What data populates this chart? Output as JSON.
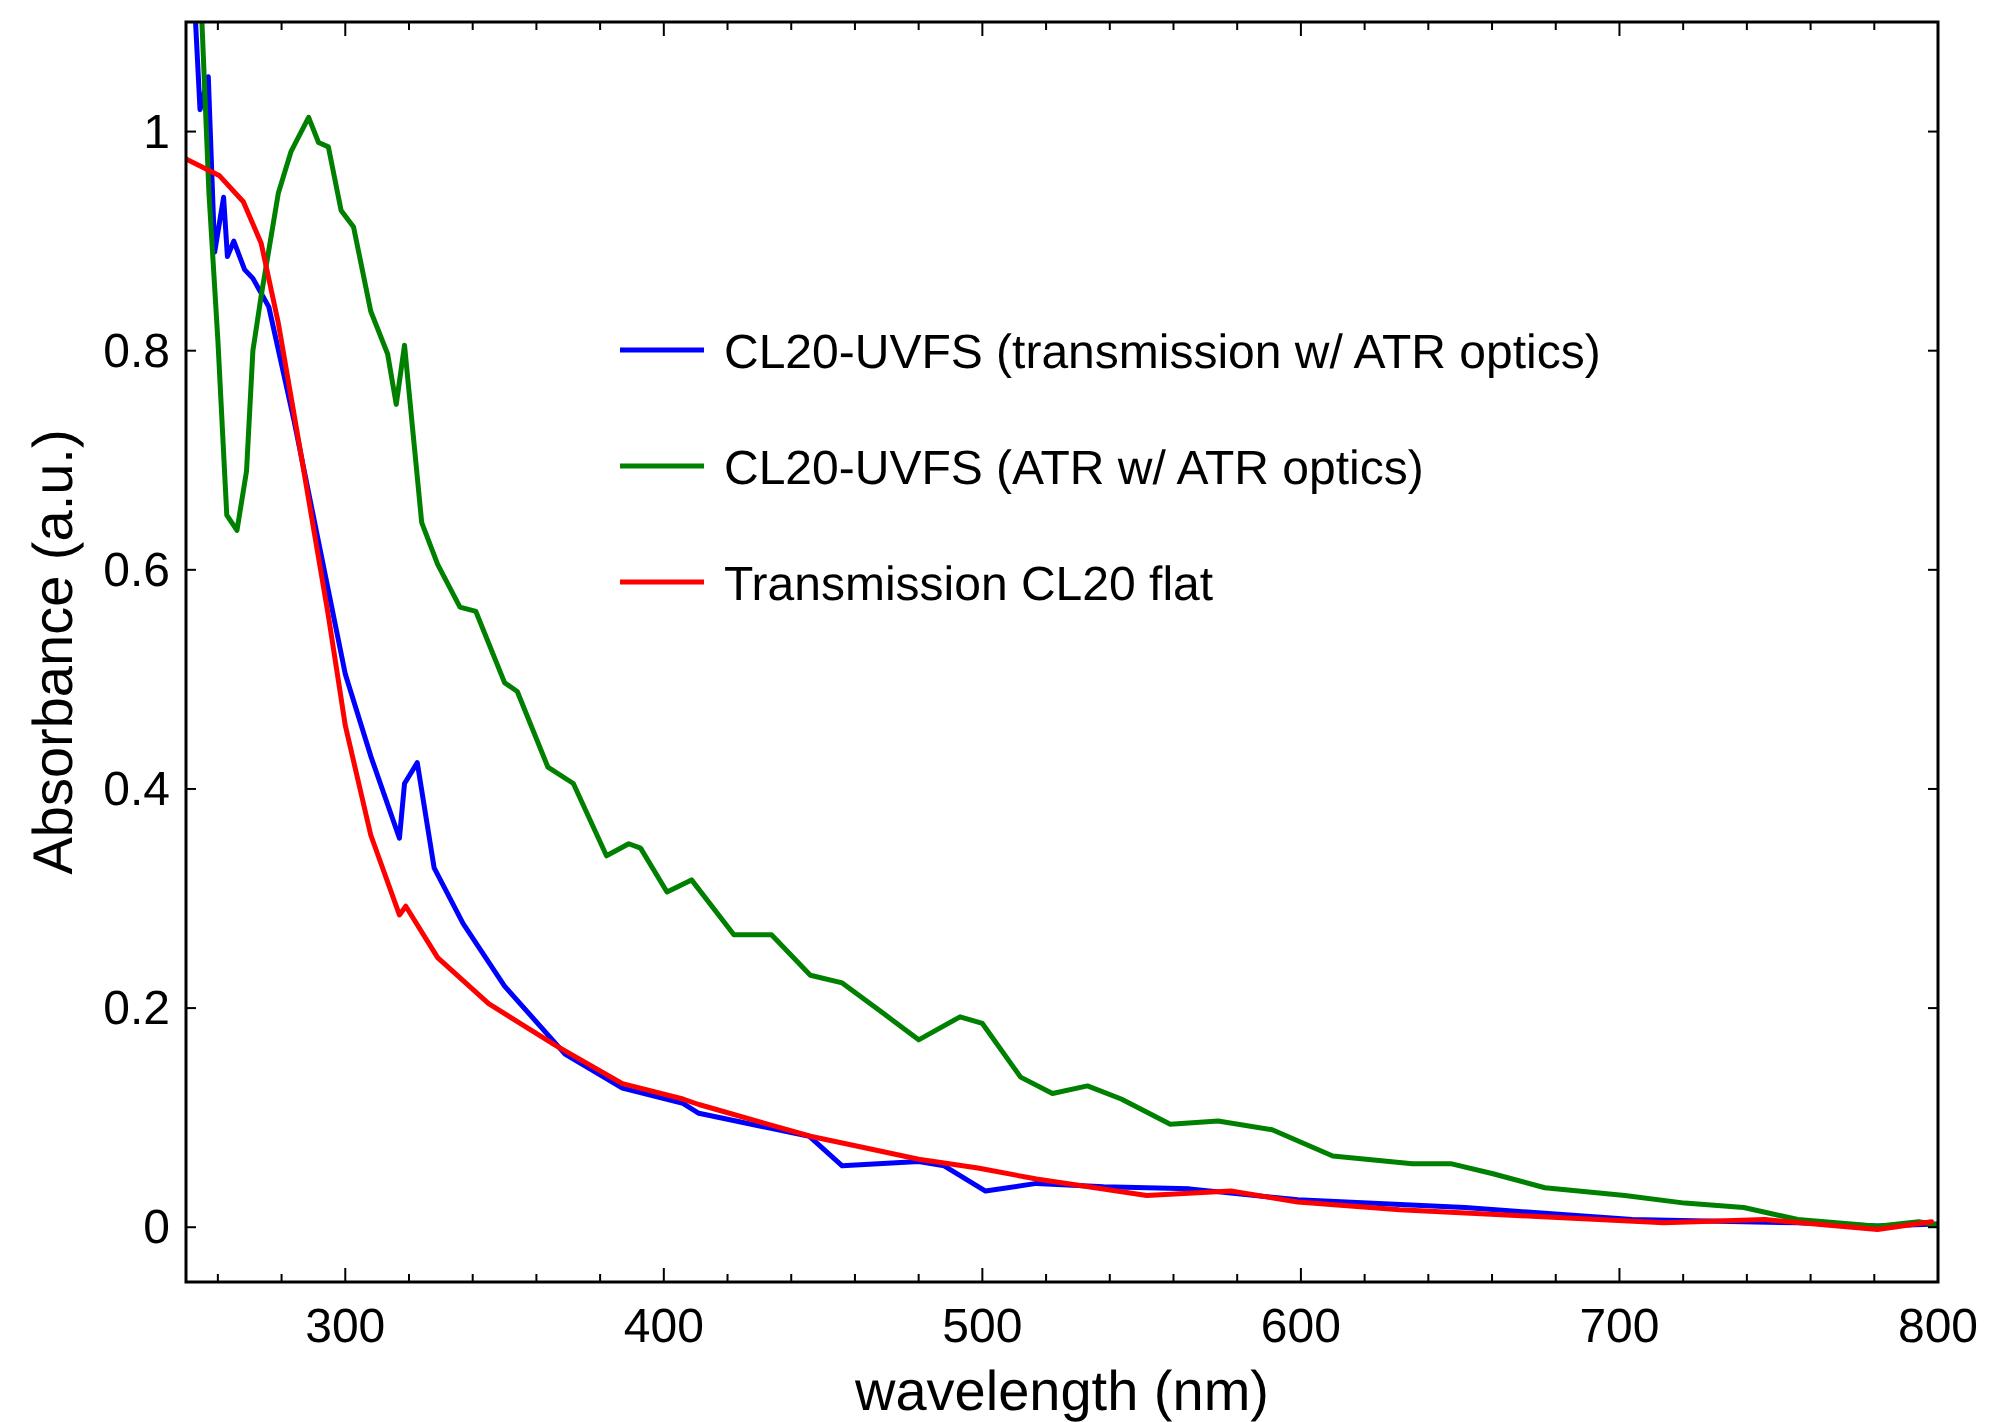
{
  "chart_data": {
    "type": "line",
    "xlabel": "wavelength (nm)",
    "ylabel": "Absorbance (a.u.)",
    "xlim": [
      250,
      800
    ],
    "ylim": [
      -0.05,
      1.1
    ],
    "xticks": [
      {
        "value": 260,
        "label": null
      },
      {
        "value": 280,
        "label": null
      },
      300,
      {
        "value": 320,
        "label": null
      },
      {
        "value": 340,
        "label": null
      },
      {
        "value": 360,
        "label": null
      },
      {
        "value": 380,
        "label": null
      },
      400,
      {
        "value": 420,
        "label": null
      },
      {
        "value": 440,
        "label": null
      },
      {
        "value": 460,
        "label": null
      },
      {
        "value": 480,
        "label": null
      },
      500,
      {
        "value": 520,
        "label": null
      },
      {
        "value": 540,
        "label": null
      },
      {
        "value": 560,
        "label": null
      },
      {
        "value": 580,
        "label": null
      },
      600,
      {
        "value": 620,
        "label": null
      },
      {
        "value": 640,
        "label": null
      },
      {
        "value": 660,
        "label": null
      },
      {
        "value": 680,
        "label": null
      },
      700,
      {
        "value": 720,
        "label": null
      },
      {
        "value": 740,
        "label": null
      },
      {
        "value": 760,
        "label": null
      },
      {
        "value": 780,
        "label": null
      },
      800
    ],
    "yticks": [
      0,
      0.2,
      0.4,
      0.6,
      0.8,
      1
    ],
    "grid": false,
    "legend": "top right",
    "marker": "none",
    "line_style": "solid",
    "series": [
      {
        "name": "CL20-UVFS (transmission w/ ATR optics)",
        "color": "#0000ff",
        "x": [
          253,
          254.4,
          257,
          259,
          261.8,
          263,
          265,
          268.4,
          271,
          276,
          284,
          292,
          300,
          308,
          317,
          318.6,
          322.6,
          327.9,
          337,
          350,
          369,
          387,
          406,
          411,
          445.7,
          456,
          480,
          488,
          501,
          517,
          538,
          565,
          599,
          651.5,
          704,
          756,
          781,
          800
        ],
        "values": [
          1.1,
          1.02,
          1.05,
          0.89,
          0.94,
          0.886,
          0.9,
          0.874,
          0.866,
          0.84,
          0.735,
          0.62,
          0.505,
          0.43,
          0.355,
          0.405,
          0.424,
          0.328,
          0.277,
          0.22,
          0.158,
          0.127,
          0.113,
          0.104,
          0.083,
          0.056,
          0.06,
          0.056,
          0.033,
          0.04,
          0.037,
          0.035,
          0.025,
          0.018,
          0.007,
          0.004,
          0.001,
          0.003
        ]
      },
      {
        "name": "CL20-UVFS (ATR w/ ATR optics)",
        "color": "#008000",
        "x": [
          255,
          257.2,
          260,
          262.8,
          266,
          269,
          271,
          273.6,
          279,
          283,
          288.5,
          291.6,
          294.7,
          298.7,
          302.6,
          308,
          313.3,
          316,
          318.6,
          324,
          329,
          336,
          341,
          350,
          354,
          363.6,
          371.6,
          382,
          389,
          392.7,
          401,
          408.7,
          422,
          433.8,
          446,
          456,
          469,
          480,
          493,
          500,
          512,
          522,
          533,
          543.6,
          559,
          574,
          591,
          610,
          635,
          647,
          660,
          676.6,
          701.7,
          720.5,
          739,
          756,
          781,
          794,
          800
        ],
        "values": [
          1.1,
          0.944,
          0.81,
          0.65,
          0.636,
          0.69,
          0.8,
          0.85,
          0.944,
          0.982,
          1.013,
          0.99,
          0.986,
          0.928,
          0.913,
          0.836,
          0.797,
          0.751,
          0.805,
          0.643,
          0.605,
          0.566,
          0.562,
          0.497,
          0.489,
          0.42,
          0.405,
          0.339,
          0.35,
          0.346,
          0.306,
          0.317,
          0.267,
          0.267,
          0.23,
          0.223,
          0.195,
          0.171,
          0.192,
          0.186,
          0.137,
          0.122,
          0.129,
          0.117,
          0.094,
          0.097,
          0.089,
          0.065,
          0.058,
          0.058,
          0.049,
          0.036,
          0.029,
          0.022,
          0.018,
          0.007,
          0.001,
          0.005,
          0.002
        ]
      },
      {
        "name": "Transmission CL20 flat",
        "color": "#ff0000",
        "x": [
          250,
          260.4,
          268,
          273.6,
          279,
          287,
          294.7,
          300,
          308,
          317,
          319,
          329,
          345,
          366,
          387,
          406,
          411,
          446,
          459,
          480,
          498.6,
          517,
          551.6,
          578,
          599,
          631,
          672.6,
          714,
          745.6,
          781,
          798
        ],
        "values": [
          0.975,
          0.96,
          0.936,
          0.898,
          0.825,
          0.69,
          0.558,
          0.458,
          0.358,
          0.285,
          0.293,
          0.246,
          0.204,
          0.166,
          0.131,
          0.117,
          0.112,
          0.083,
          0.075,
          0.062,
          0.054,
          0.044,
          0.029,
          0.033,
          0.023,
          0.016,
          0.01,
          0.004,
          0.007,
          -0.002,
          0.005
        ]
      }
    ]
  }
}
